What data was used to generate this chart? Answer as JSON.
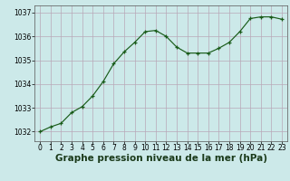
{
  "x": [
    0,
    1,
    2,
    3,
    4,
    5,
    6,
    7,
    8,
    9,
    10,
    11,
    12,
    13,
    14,
    15,
    16,
    17,
    18,
    19,
    20,
    21,
    22,
    23
  ],
  "y": [
    1032.0,
    1032.2,
    1032.35,
    1032.8,
    1033.05,
    1033.5,
    1034.1,
    1034.85,
    1035.35,
    1035.75,
    1036.2,
    1036.25,
    1036.0,
    1035.55,
    1035.3,
    1035.3,
    1035.3,
    1035.5,
    1035.75,
    1036.2,
    1036.75,
    1036.82,
    1036.82,
    1036.72
  ],
  "line_color": "#1a5c1a",
  "marker_color": "#1a5c1a",
  "bg_color": "#cce9e9",
  "grid_color": "#b8a8b8",
  "xlabel": "Graphe pression niveau de la mer (hPa)",
  "ylim": [
    1031.6,
    1037.3
  ],
  "yticks": [
    1032,
    1033,
    1034,
    1035,
    1036,
    1037
  ],
  "xticks": [
    0,
    1,
    2,
    3,
    4,
    5,
    6,
    7,
    8,
    9,
    10,
    11,
    12,
    13,
    14,
    15,
    16,
    17,
    18,
    19,
    20,
    21,
    22,
    23
  ],
  "xlabel_fontsize": 7.5,
  "tick_fontsize": 5.5
}
